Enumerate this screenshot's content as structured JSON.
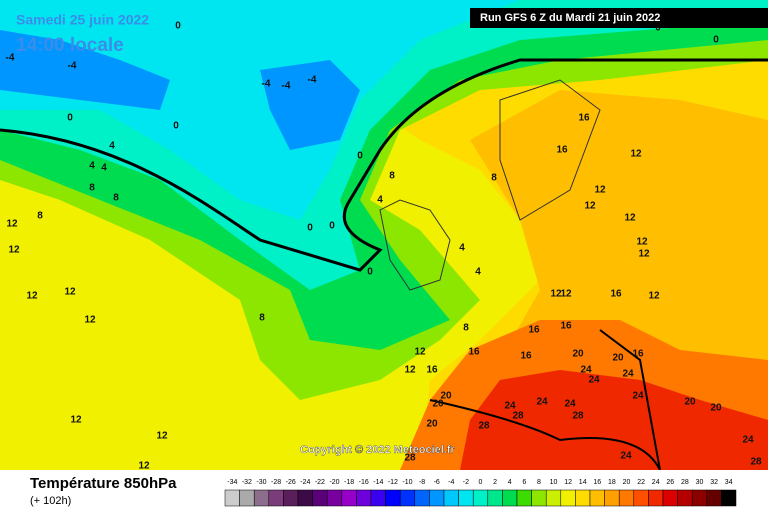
{
  "header": {
    "date": "Samedi 25 juin 2022",
    "time": "14:00 locale",
    "run": "Run GFS 6 Z du Mardi 21 juin 2022"
  },
  "copyright": "Copyright © 2022 Meteociel.fr",
  "footer": {
    "title": "Température 850hPa",
    "lead": "(+ 102h)"
  },
  "scale": {
    "values": [
      -34,
      -32,
      -30,
      -28,
      -26,
      -24,
      -22,
      -20,
      -18,
      -16,
      -14,
      -12,
      -10,
      -8,
      -6,
      -4,
      -2,
      0,
      2,
      4,
      6,
      8,
      10,
      12,
      14,
      16,
      18,
      20,
      22,
      24,
      26,
      28,
      30,
      32,
      34
    ],
    "colors": [
      "#cccccc",
      "#aaaaaa",
      "#8c6e8c",
      "#7a3c7a",
      "#5a1e5a",
      "#3c0a46",
      "#5a0078",
      "#7800a0",
      "#9600c8",
      "#6e00dc",
      "#3c00f0",
      "#0000ff",
      "#0032ff",
      "#0064ff",
      "#0096ff",
      "#00c8ff",
      "#00e6f0",
      "#00f0c8",
      "#00e68c",
      "#00dc50",
      "#3cdc00",
      "#8ce600",
      "#c8f000",
      "#f0f000",
      "#ffdc00",
      "#ffbe00",
      "#ffa000",
      "#ff7800",
      "#ff5000",
      "#f02800",
      "#dc0000",
      "#b40000",
      "#8c0000",
      "#640000",
      "#000000"
    ]
  },
  "map_labels": [
    "0",
    "-4",
    "-4",
    "-4",
    "-4",
    "-4",
    "0",
    "0",
    "4",
    "4",
    "4",
    "8",
    "8",
    "8",
    "12",
    "12",
    "12",
    "12",
    "12",
    "8",
    "0",
    "4",
    "8",
    "0",
    "0",
    "0",
    "4",
    "4",
    "8",
    "16",
    "16",
    "12",
    "8",
    "12",
    "12",
    "12",
    "12",
    "12",
    "12",
    "12",
    "16",
    "12",
    "16",
    "16",
    "16",
    "12",
    "12",
    "16",
    "16",
    "20",
    "20",
    "16",
    "24",
    "24",
    "24",
    "20",
    "20",
    "24",
    "28",
    "24",
    "24",
    "28",
    "24",
    "20",
    "20",
    "20",
    "28",
    "28",
    "24",
    "24",
    "28",
    "12",
    "12",
    "12",
    "0",
    "0"
  ]
}
